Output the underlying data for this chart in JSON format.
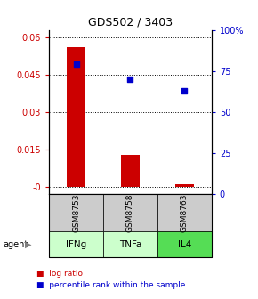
{
  "title": "GDS502 / 3403",
  "samples": [
    "GSM8753",
    "GSM8758",
    "GSM8763"
  ],
  "agents": [
    "IFNg",
    "TNFa",
    "IL4"
  ],
  "log_ratios": [
    0.056,
    0.013,
    0.001
  ],
  "percentile_ranks": [
    79,
    70,
    63
  ],
  "bar_color": "#cc0000",
  "scatter_color": "#0000cc",
  "ylim_left": [
    -0.003,
    0.063
  ],
  "ylim_right": [
    0,
    100
  ],
  "yticks_left": [
    0.0,
    0.015,
    0.03,
    0.045,
    0.06
  ],
  "yticks_right": [
    0,
    25,
    50,
    75,
    100
  ],
  "ytick_labels_left": [
    "-0",
    "0.015",
    "0.03",
    "0.045",
    "0.06"
  ],
  "ytick_labels_right": [
    "0",
    "25",
    "50",
    "75",
    "100%"
  ],
  "agent_colors": [
    "#ccffcc",
    "#ccffcc",
    "#66dd66"
  ],
  "sample_bg_color": "#cccccc",
  "bar_width": 0.35,
  "legend_log_label": "log ratio",
  "legend_pct_label": "percentile rank within the sample"
}
